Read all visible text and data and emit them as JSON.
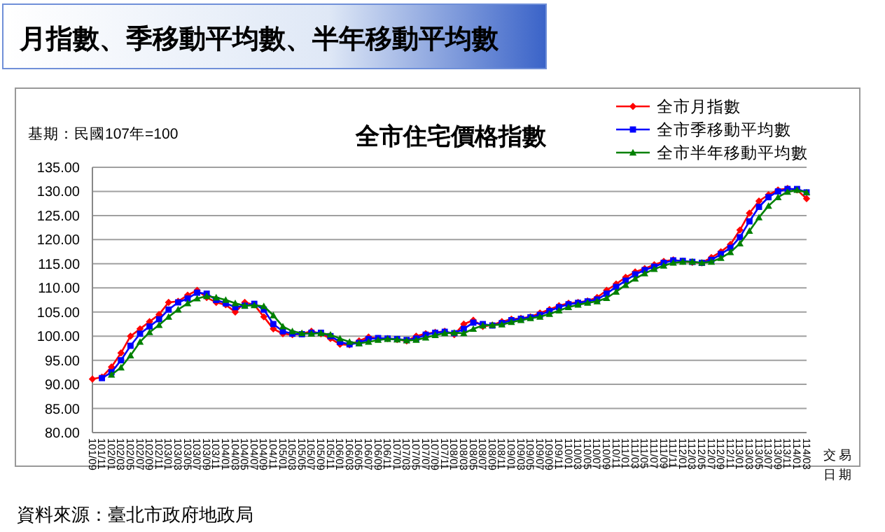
{
  "chart_data": {
    "type": "line",
    "title": "月指數、季移動平均數、半年移動平均數",
    "subtitle": "全市住宅價格指數",
    "xlabel": "交易日期",
    "annotations": [
      "基期：民國107年=100",
      "資料來源：臺北市政府地政局"
    ],
    "categories": [
      "101/09",
      "101/11",
      "102/01",
      "102/03",
      "102/05",
      "102/07",
      "102/09",
      "102/11",
      "103/01",
      "103/03",
      "103/05",
      "103/07",
      "103/09",
      "103/11",
      "104/01",
      "104/03",
      "104/05",
      "104/07",
      "104/09",
      "104/11",
      "105/01",
      "105/03",
      "105/05",
      "105/07",
      "105/09",
      "105/11",
      "106/01",
      "106/03",
      "106/05",
      "106/07",
      "106/09",
      "106/11",
      "107/01",
      "107/03",
      "107/05",
      "107/07",
      "107/09",
      "107/11",
      "108/01",
      "108/03",
      "108/05",
      "108/07",
      "108/09",
      "108/11",
      "109/01",
      "109/03",
      "109/05",
      "109/07",
      "109/09",
      "109/11",
      "110/01",
      "110/03",
      "110/05",
      "110/07",
      "110/09",
      "110/11",
      "111/01",
      "111/03",
      "111/05",
      "111/07",
      "111/09",
      "111/11",
      "112/01",
      "112/03",
      "112/05",
      "112/07",
      "112/09",
      "112/11",
      "113/01",
      "113/03",
      "113/05",
      "113/07",
      "113/09",
      "113/11",
      "114/01",
      "114/03"
    ],
    "series": [
      {
        "name": "全市月指數",
        "color": "#ff0000",
        "marker": "diamond",
        "values": [
          91.1,
          91.5,
          93.6,
          96.5,
          100.0,
          101.5,
          103.0,
          104.5,
          107.0,
          107.2,
          108.5,
          109.5,
          108.0,
          107.0,
          106.5,
          105.0,
          107.0,
          106.5,
          104.0,
          101.5,
          100.5,
          100.3,
          100.5,
          101.0,
          100.5,
          99.5,
          98.3,
          98.2,
          99.0,
          99.8,
          99.5,
          99.5,
          99.3,
          99.0,
          100.0,
          100.5,
          100.8,
          101.0,
          100.3,
          102.5,
          103.3,
          102.0,
          102.3,
          103.0,
          103.5,
          103.7,
          104.0,
          104.8,
          105.5,
          106.3,
          106.8,
          107.0,
          107.3,
          108.0,
          109.5,
          110.8,
          112.2,
          113.3,
          114.0,
          114.8,
          115.5,
          115.8,
          115.5,
          115.3,
          115.2,
          116.3,
          117.5,
          119.0,
          122.0,
          125.5,
          128.0,
          129.3,
          130.3,
          130.6,
          130.3,
          128.5
        ]
      },
      {
        "name": "全市季移動平均數",
        "color": "#0000ff",
        "marker": "square",
        "values": [
          null,
          91.3,
          92.5,
          95.0,
          98.0,
          100.5,
          102.0,
          103.5,
          105.5,
          107.0,
          107.8,
          109.0,
          108.8,
          107.5,
          106.8,
          106.0,
          106.3,
          106.7,
          105.5,
          102.5,
          101.0,
          100.5,
          100.4,
          100.7,
          100.7,
          100.0,
          98.8,
          98.3,
          98.6,
          99.4,
          99.6,
          99.5,
          99.4,
          99.2,
          99.5,
          100.3,
          100.7,
          100.9,
          100.6,
          101.5,
          102.8,
          102.5,
          102.2,
          102.7,
          103.3,
          103.6,
          103.9,
          104.4,
          105.2,
          106.0,
          106.6,
          106.9,
          107.2,
          107.6,
          108.8,
          110.2,
          111.5,
          112.8,
          113.7,
          114.4,
          115.2,
          115.7,
          115.6,
          115.4,
          115.2,
          115.8,
          117.0,
          118.3,
          120.5,
          123.8,
          126.8,
          128.8,
          130.0,
          130.5,
          130.5,
          129.8
        ]
      },
      {
        "name": "全市半年移動平均數",
        "color": "#008000",
        "marker": "triangle",
        "values": [
          null,
          null,
          92.0,
          93.5,
          96.0,
          98.8,
          100.8,
          102.3,
          104.0,
          105.5,
          106.8,
          107.8,
          108.3,
          108.0,
          107.5,
          106.8,
          106.3,
          106.4,
          106.2,
          104.3,
          102.0,
          101.0,
          100.6,
          100.5,
          100.6,
          100.3,
          99.5,
          98.8,
          98.5,
          98.8,
          99.2,
          99.4,
          99.3,
          99.1,
          99.2,
          99.7,
          100.2,
          100.6,
          100.7,
          100.6,
          101.5,
          102.2,
          102.3,
          102.4,
          102.9,
          103.3,
          103.7,
          104.0,
          104.6,
          105.3,
          106.0,
          106.5,
          106.9,
          107.2,
          107.9,
          109.2,
          110.6,
          111.9,
          113.0,
          113.9,
          114.6,
          115.2,
          115.4,
          115.4,
          115.2,
          115.4,
          116.2,
          117.4,
          119.2,
          121.8,
          124.6,
          127.0,
          128.8,
          129.9,
          130.3,
          129.8
        ]
      }
    ],
    "ylim": [
      80,
      135
    ],
    "yticks": [
      {
        "value": 80,
        "label": "80.00"
      },
      {
        "value": 85,
        "label": "85.00"
      },
      {
        "value": 90,
        "label": "90.00"
      },
      {
        "value": 95,
        "label": "95.00"
      },
      {
        "value": 100,
        "label": "100.00"
      },
      {
        "value": 105,
        "label": "105.00"
      },
      {
        "value": 110,
        "label": "110.00"
      },
      {
        "value": 115,
        "label": "115.00"
      },
      {
        "value": 120,
        "label": "120.00"
      },
      {
        "value": 125,
        "label": "125.00"
      },
      {
        "value": 130,
        "label": "130.00"
      },
      {
        "value": 135,
        "label": "135.00"
      }
    ],
    "grid": "y",
    "legend": "top right",
    "line_style": "solid"
  }
}
